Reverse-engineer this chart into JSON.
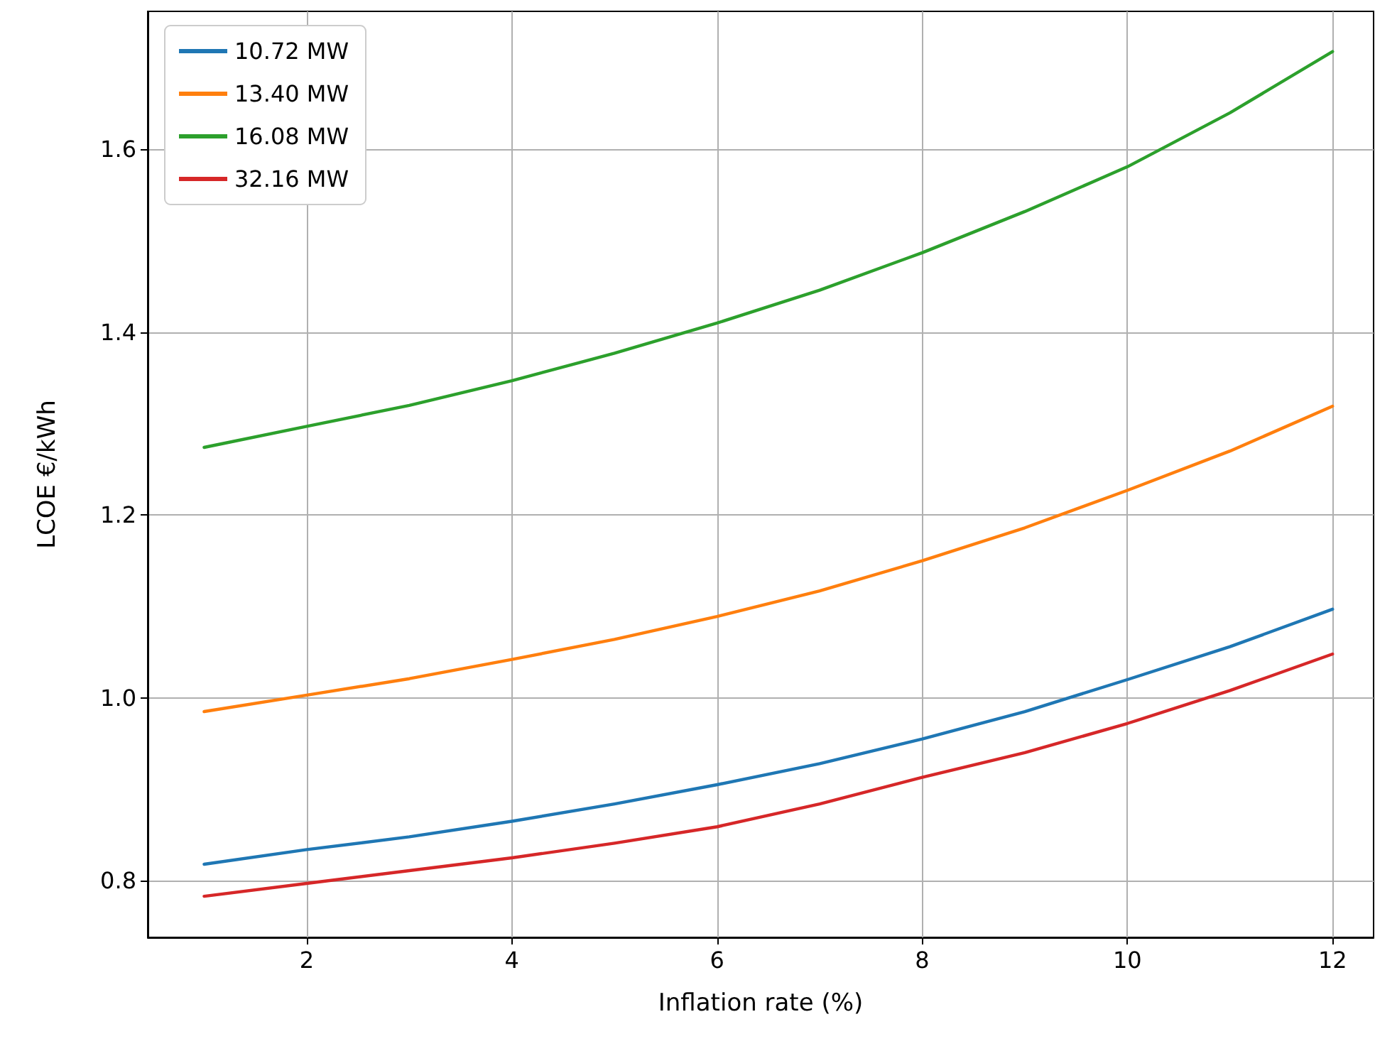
{
  "chart_data": {
    "type": "line",
    "xlabel": "Inflation rate (%)",
    "ylabel": "LCOE €/kWh",
    "x": [
      1,
      2,
      3,
      4,
      5,
      6,
      7,
      8,
      9,
      10,
      11,
      12
    ],
    "series": [
      {
        "name": "10.72 MW",
        "color": "#1f77b4",
        "values": [
          0.818,
          0.834,
          0.848,
          0.865,
          0.884,
          0.905,
          0.928,
          0.955,
          0.985,
          1.02,
          1.056,
          1.097
        ]
      },
      {
        "name": "13.40 MW",
        "color": "#ff7f0e",
        "values": [
          0.985,
          1.003,
          1.021,
          1.042,
          1.064,
          1.089,
          1.117,
          1.15,
          1.186,
          1.227,
          1.27,
          1.319
        ]
      },
      {
        "name": "16.08 MW",
        "color": "#2ca02c",
        "values": [
          1.274,
          1.297,
          1.32,
          1.347,
          1.377,
          1.41,
          1.446,
          1.487,
          1.532,
          1.581,
          1.64,
          1.707
        ]
      },
      {
        "name": "32.16 MW",
        "color": "#d62728",
        "values": [
          0.783,
          0.797,
          0.811,
          0.825,
          0.841,
          0.859,
          0.884,
          0.913,
          0.94,
          0.972,
          1.008,
          1.048
        ]
      }
    ],
    "xlim": [
      0.45,
      12.4
    ],
    "ylim": [
      0.738,
      1.751
    ],
    "xticks": [
      2,
      4,
      6,
      8,
      10,
      12
    ],
    "yticks": [
      {
        "value": 0.8,
        "label": "0.8"
      },
      {
        "value": 1.0,
        "label": "1.0"
      },
      {
        "value": 1.2,
        "label": "1.2"
      },
      {
        "value": 1.4,
        "label": "1.4"
      },
      {
        "value": 1.6,
        "label": "1.6"
      }
    ],
    "grid": true,
    "legend": "top left",
    "marker": "none",
    "line_style": "solid"
  }
}
